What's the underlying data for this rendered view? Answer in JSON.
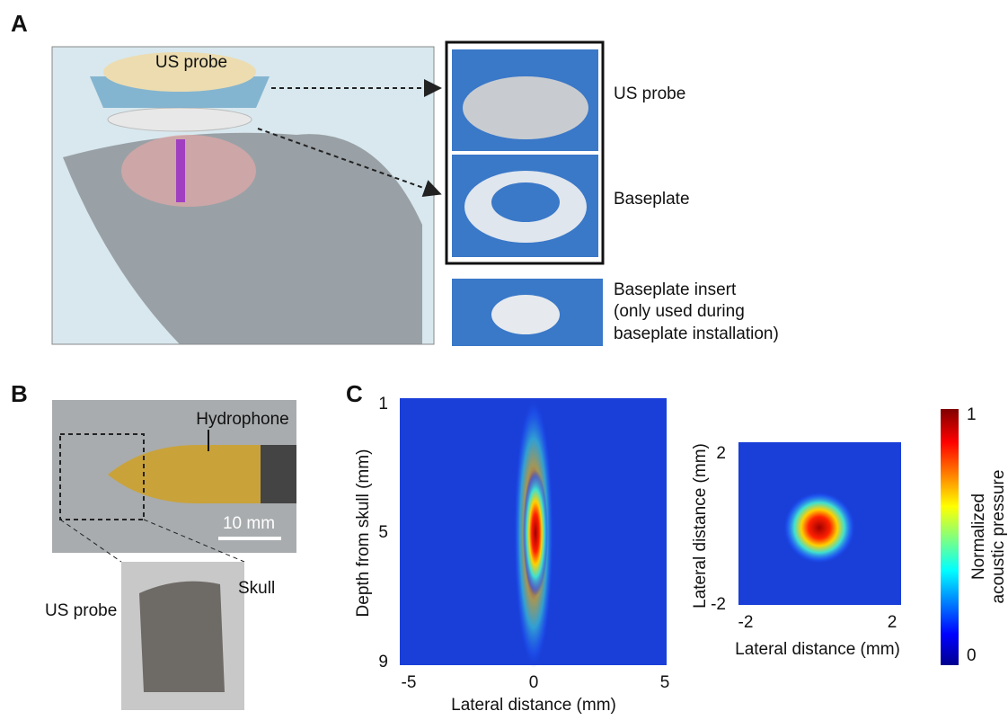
{
  "panels": {
    "a": {
      "label": "A",
      "illustration_label": "US probe",
      "photos": [
        "US probe",
        "Baseplate"
      ],
      "insert": [
        "Baseplate insert",
        "(only used during",
        "baseplate installation)"
      ]
    },
    "b": {
      "label": "B",
      "hydrophone": "Hydrophone",
      "scale": "10 mm",
      "us_probe": "US probe",
      "skull": "Skull"
    },
    "c": {
      "label": "C",
      "left": {
        "ylabel": "Depth from skull (mm)",
        "xlabel": "Lateral distance (mm)",
        "yticks": [
          "1",
          "5",
          "9"
        ],
        "xticks": [
          "-5",
          "0",
          "5"
        ]
      },
      "right": {
        "ylabel": "Lateral distance (mm)",
        "xlabel": "Lateral distance (mm)",
        "yticks": [
          "2",
          "-2"
        ],
        "xticks": [
          "-2",
          "2"
        ]
      },
      "colorbar": {
        "ticks": [
          "1",
          "0"
        ],
        "label": [
          "Normalized",
          "acoustic pressure"
        ]
      }
    }
  }
}
